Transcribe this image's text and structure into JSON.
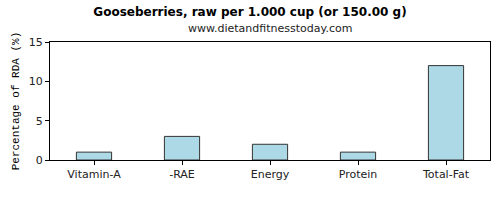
{
  "chart_data": {
    "type": "bar",
    "title": "Gooseberries, raw per 1.000 cup (or 150.00 g)",
    "subtitle": "www.dietandfitnesstoday.com",
    "y_label": "Percentage of RDA (%)",
    "categories": [
      "Vitamin-A",
      "-RAE",
      "Energy",
      "Protein",
      "Total-Fat"
    ],
    "values": [
      1,
      3,
      2,
      1,
      12
    ],
    "color": "#add8e6",
    "ylim": [
      0,
      15
    ],
    "yticks": [
      0,
      5,
      10,
      15
    ],
    "grid": false
  }
}
